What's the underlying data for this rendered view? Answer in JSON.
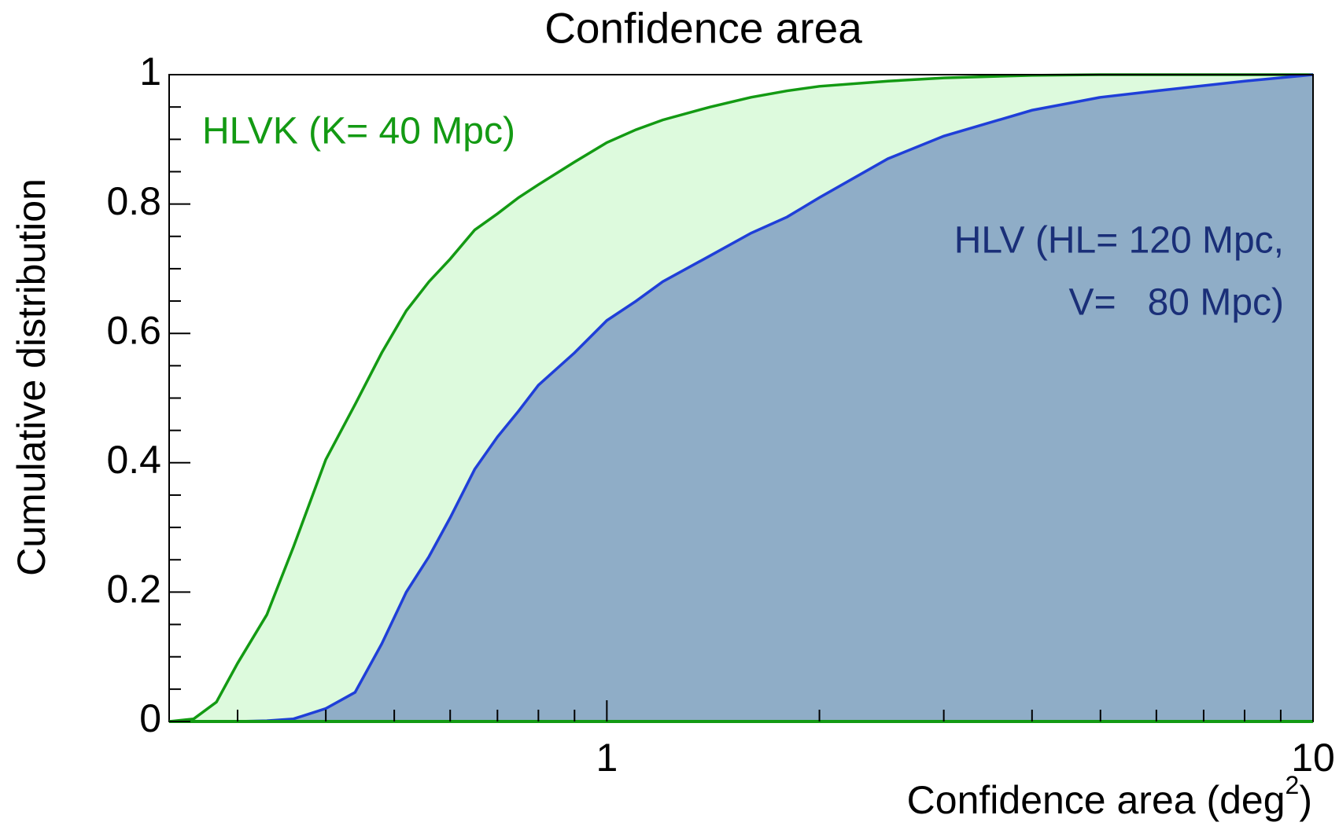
{
  "chart_data": {
    "type": "area",
    "title": "Confidence area",
    "xlabel": "Confidence area (deg",
    "xlabel_sup": "2",
    "xlabel_end": ")",
    "ylabel": "Cumulative distribution",
    "x": [
      0.24,
      0.26,
      0.28,
      0.3,
      0.33,
      0.36,
      0.4,
      0.44,
      0.48,
      0.52,
      0.56,
      0.6,
      0.65,
      0.7,
      0.75,
      0.8,
      0.9,
      1,
      1.1,
      1.2,
      1.4,
      1.6,
      1.8,
      2,
      2.5,
      3,
      4,
      5,
      6,
      8,
      10
    ],
    "series": [
      {
        "name": "HLVK (K= 40 Mpc)",
        "color": "#139a13",
        "fill": "#ddfadd",
        "values": [
          0,
          0.004,
          0.03,
          0.09,
          0.165,
          0.27,
          0.405,
          0.49,
          0.57,
          0.635,
          0.68,
          0.715,
          0.76,
          0.785,
          0.81,
          0.83,
          0.865,
          0.895,
          0.915,
          0.93,
          0.95,
          0.965,
          0.975,
          0.982,
          0.99,
          0.995,
          0.999,
          1,
          1,
          1,
          1
        ]
      },
      {
        "name": "HLV (HL= 120 Mpc,",
        "name2": "V=   80 Mpc)",
        "color": "#1f3fd8",
        "fill": "#8fadc7",
        "values": [
          0,
          0,
          0,
          0,
          0.001,
          0.004,
          0.02,
          0.045,
          0.12,
          0.2,
          0.255,
          0.315,
          0.39,
          0.44,
          0.48,
          0.52,
          0.57,
          0.62,
          0.65,
          0.68,
          0.72,
          0.755,
          0.78,
          0.81,
          0.87,
          0.905,
          0.945,
          0.965,
          0.975,
          0.99,
          1
        ]
      }
    ],
    "xlim": [
      0.24,
      10
    ],
    "xscale": "log",
    "xticks": [
      1,
      10
    ],
    "xminorticks": [
      0.3,
      0.4,
      0.5,
      0.6,
      0.7,
      0.8,
      0.9,
      2,
      3,
      4,
      5,
      6,
      7,
      8,
      9
    ],
    "ylim": [
      0,
      1
    ],
    "yticks": [
      0,
      0.2,
      0.4,
      0.6,
      0.8,
      1
    ],
    "yminorticks": [
      0.05,
      0.1,
      0.15,
      0.25,
      0.3,
      0.35,
      0.45,
      0.5,
      0.55,
      0.65,
      0.7,
      0.75,
      0.85,
      0.9,
      0.95
    ]
  }
}
